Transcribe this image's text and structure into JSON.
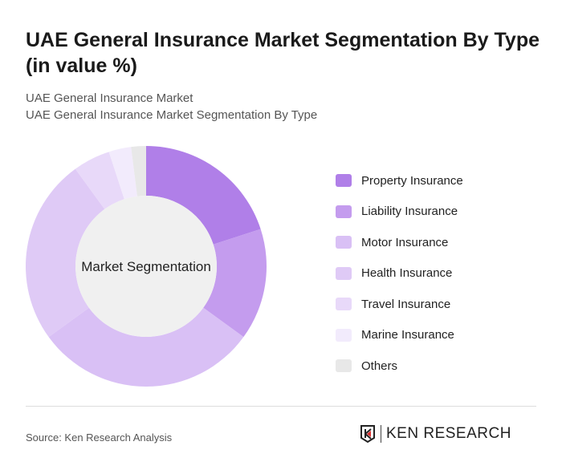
{
  "title": "UAE General Insurance Market Segmentation By Type (in value %)",
  "breadcrumb": [
    "UAE General Insurance Market",
    "UAE General Insurance Market Segmentation By Type"
  ],
  "source": "Source: Ken Research Analysis",
  "logo_text": "KEN RESEARCH",
  "chart_data": {
    "type": "pie",
    "variant": "donut",
    "center_label": "Market Segmentation",
    "categories": [
      "Property Insurance",
      "Liability Insurance",
      "Motor Insurance",
      "Health Insurance",
      "Travel Insurance",
      "Marine Insurance",
      "Others"
    ],
    "values": [
      20,
      15,
      30,
      25,
      5,
      3,
      2
    ],
    "colors": [
      "#b07fe8",
      "#c49cee",
      "#d9c0f5",
      "#dfcaf6",
      "#e8d9f9",
      "#f2ebfc",
      "#e8e8e8"
    ],
    "legend": "right"
  }
}
